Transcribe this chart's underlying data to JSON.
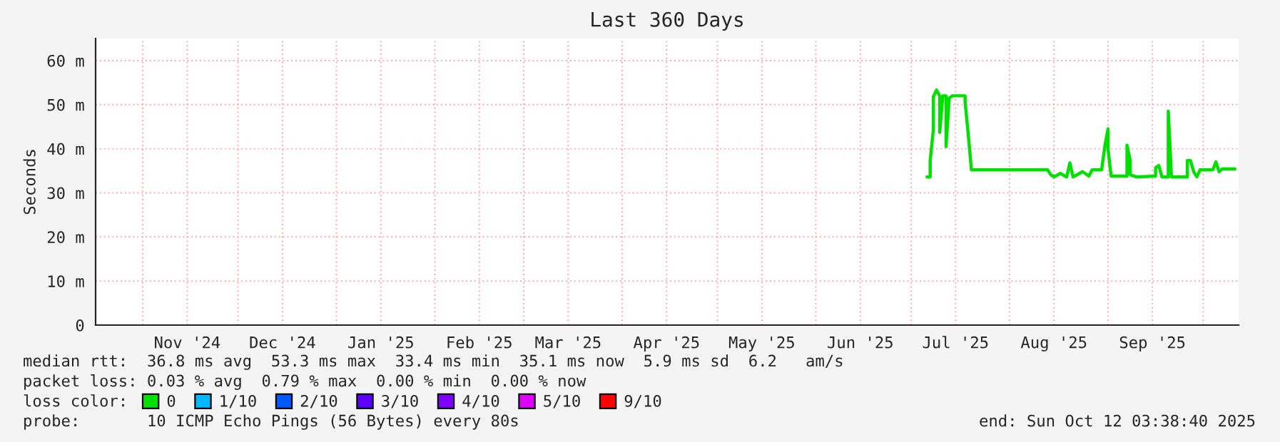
{
  "chart_data": {
    "type": "line",
    "title": "Last 360 Days",
    "ylabel": "Seconds",
    "x": [
      "2025-07-06",
      "2025-07-07",
      "2025-07-07",
      "2025-07-08",
      "2025-07-08",
      "2025-07-09",
      "2025-07-10",
      "2025-07-10",
      "2025-07-11",
      "2025-07-12",
      "2025-07-12",
      "2025-07-13",
      "2025-07-14",
      "2025-07-18",
      "2025-07-18",
      "2025-07-19",
      "2025-07-20",
      "2025-08-13",
      "2025-08-14",
      "2025-08-15",
      "2025-08-17",
      "2025-08-19",
      "2025-08-20",
      "2025-08-21",
      "2025-08-24",
      "2025-08-26",
      "2025-08-27",
      "2025-08-30",
      "2025-08-31",
      "2025-09-01",
      "2025-09-01",
      "2025-09-02",
      "2025-09-07",
      "2025-09-07",
      "2025-09-08",
      "2025-09-08",
      "2025-09-10",
      "2025-09-16",
      "2025-09-16",
      "2025-09-17",
      "2025-09-18",
      "2025-09-20",
      "2025-09-20",
      "2025-09-21",
      "2025-09-26",
      "2025-09-26",
      "2025-09-27",
      "2025-09-28",
      "2025-09-29",
      "2025-09-30",
      "2025-10-04",
      "2025-10-05",
      "2025-10-06",
      "2025-10-07",
      "2025-10-11"
    ],
    "series": [
      {
        "name": "0",
        "color": "#00e000",
        "values": [
          33.6,
          33.6,
          37.3,
          44.3,
          51.8,
          53.3,
          52.0,
          43.7,
          52.0,
          52.0,
          40.5,
          51.5,
          52.0,
          52.0,
          50.7,
          43.2,
          35.2,
          35.2,
          34.1,
          33.6,
          34.4,
          33.6,
          36.8,
          33.6,
          34.8,
          33.8,
          35.2,
          35.2,
          40.5,
          44.5,
          40.0,
          33.8,
          33.8,
          40.8,
          37.3,
          34.1,
          33.6,
          33.8,
          35.7,
          36.2,
          33.6,
          33.6,
          48.5,
          33.6,
          33.6,
          37.3,
          37.3,
          34.8,
          33.6,
          35.2,
          35.2,
          37.0,
          34.8,
          35.4,
          35.4
        ]
      },
      {
        "name": "1/10",
        "color": "#00b8ff",
        "values": [
          null,
          null,
          null,
          null,
          null,
          null,
          null,
          null,
          null,
          null,
          null,
          null,
          null,
          null,
          null,
          null,
          null,
          null,
          null,
          null,
          null,
          null,
          null,
          null,
          null,
          null,
          null,
          null,
          null,
          null,
          null,
          null,
          null,
          null,
          null,
          null,
          null,
          null,
          null,
          null,
          null,
          null,
          null,
          null,
          null,
          null,
          null,
          null,
          null,
          null,
          null,
          null,
          null,
          null,
          null
        ]
      },
      {
        "name": "2/10",
        "color": "#0059ff",
        "values": [
          null,
          null,
          null,
          null,
          null,
          null,
          null,
          null,
          null,
          null,
          null,
          null,
          null,
          null,
          null,
          null,
          null,
          null,
          null,
          null,
          null,
          null,
          null,
          null,
          null,
          null,
          null,
          null,
          null,
          null,
          null,
          null,
          null,
          null,
          null,
          null,
          null,
          null,
          null,
          null,
          null,
          null,
          null,
          null,
          null,
          null,
          null,
          null,
          null,
          null,
          null,
          null,
          null,
          null,
          null
        ]
      },
      {
        "name": "3/10",
        "color": "#5e00ff",
        "values": [
          null,
          null,
          null,
          null,
          null,
          null,
          null,
          null,
          null,
          null,
          null,
          null,
          null,
          null,
          null,
          null,
          null,
          null,
          null,
          null,
          null,
          null,
          null,
          null,
          null,
          null,
          null,
          null,
          null,
          null,
          null,
          null,
          null,
          null,
          null,
          null,
          null,
          null,
          null,
          null,
          null,
          null,
          null,
          null,
          null,
          null,
          null,
          null,
          null,
          null,
          null,
          null,
          null,
          null,
          null
        ]
      },
      {
        "name": "4/10",
        "color": "#7e00ff",
        "values": [
          null,
          null,
          null,
          null,
          null,
          null,
          null,
          null,
          null,
          null,
          null,
          null,
          null,
          null,
          null,
          null,
          null,
          null,
          null,
          null,
          null,
          null,
          null,
          null,
          null,
          null,
          null,
          null,
          null,
          null,
          null,
          null,
          null,
          null,
          null,
          null,
          null,
          null,
          null,
          null,
          null,
          null,
          null,
          null,
          null,
          null,
          null,
          null,
          null,
          null,
          null,
          null,
          null,
          null,
          null
        ]
      },
      {
        "name": "5/10",
        "color": "#dd00ff",
        "values": [
          null,
          null,
          null,
          null,
          null,
          null,
          null,
          null,
          null,
          null,
          null,
          null,
          null,
          null,
          null,
          null,
          null,
          null,
          null,
          null,
          null,
          null,
          null,
          null,
          null,
          null,
          null,
          null,
          null,
          null,
          null,
          null,
          null,
          null,
          null,
          null,
          null,
          null,
          null,
          null,
          null,
          null,
          null,
          null,
          null,
          null,
          null,
          null,
          null,
          null,
          null,
          null,
          null,
          null,
          null
        ]
      },
      {
        "name": "9/10",
        "color": "#ff0000",
        "values": [
          null,
          null,
          null,
          null,
          null,
          null,
          null,
          null,
          null,
          null,
          null,
          null,
          null,
          null,
          null,
          null,
          null,
          null,
          null,
          null,
          null,
          null,
          null,
          null,
          null,
          null,
          null,
          null,
          null,
          null,
          null,
          null,
          null,
          null,
          null,
          null,
          null,
          null,
          null,
          null,
          null,
          null,
          null,
          null,
          null,
          null,
          null,
          null,
          null,
          null,
          null,
          null,
          null,
          null,
          null
        ]
      }
    ],
    "xlim": [
      "2024-10-17T03:38",
      "2025-10-12T03:38"
    ],
    "xticks": [
      {
        "value": "2024-11-01",
        "label": null
      },
      {
        "value": "2024-11-15",
        "label": "Nov '24"
      },
      {
        "value": "2024-12-01",
        "label": null
      },
      {
        "value": "2024-12-15",
        "label": "Dec '24"
      },
      {
        "value": "2025-01-01",
        "label": null
      },
      {
        "value": "2025-01-15",
        "label": "Jan '25"
      },
      {
        "value": "2025-02-01",
        "label": null
      },
      {
        "value": "2025-02-15",
        "label": "Feb '25"
      },
      {
        "value": "2025-03-01",
        "label": null
      },
      {
        "value": "2025-03-15",
        "label": "Mar '25"
      },
      {
        "value": "2025-04-01",
        "label": null
      },
      {
        "value": "2025-04-15",
        "label": "Apr '25"
      },
      {
        "value": "2025-05-01",
        "label": null
      },
      {
        "value": "2025-05-15",
        "label": "May '25"
      },
      {
        "value": "2025-06-01",
        "label": null
      },
      {
        "value": "2025-06-15",
        "label": "Jun '25"
      },
      {
        "value": "2025-07-01",
        "label": null
      },
      {
        "value": "2025-07-15",
        "label": "Jul '25"
      },
      {
        "value": "2025-08-01",
        "label": null
      },
      {
        "value": "2025-08-15",
        "label": "Aug '25"
      },
      {
        "value": "2025-09-01",
        "label": null
      },
      {
        "value": "2025-09-15",
        "label": "Sep '25"
      },
      {
        "value": "2025-10-01",
        "label": null
      }
    ],
    "ylim": [
      0,
      65
    ],
    "yticks": [
      0,
      {
        "value": 10,
        "label": "10 m"
      },
      {
        "value": 20,
        "label": "20 m"
      },
      {
        "value": 30,
        "label": "30 m"
      },
      {
        "value": 40,
        "label": "40 m"
      },
      {
        "value": 50,
        "label": "50 m"
      },
      {
        "value": 60,
        "label": "60 m"
      }
    ],
    "grid": true,
    "legend": "bottom",
    "annotations": [
      "median rtt:  36.8 ms avg  53.3 ms max  33.4 ms min  35.1 ms now  5.9 ms sd  6.2   am/s",
      "packet loss: 0.03 % avg  0.79 % max  0.00 % min  0.00 % now",
      "loss color:",
      "probe:       10 ICMP Echo Pings (56 Bytes) every 80s",
      "end: Sun Oct 12 03:38:40 2025"
    ]
  }
}
